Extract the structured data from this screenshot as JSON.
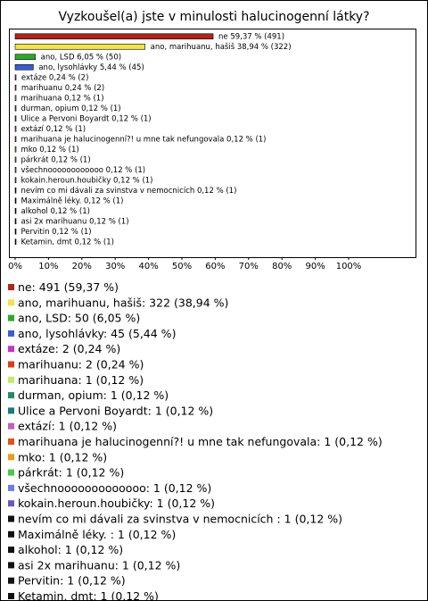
{
  "chart_data": {
    "type": "hbar",
    "title": "Vyzkoušel(a) jste v minulosti halucinogenní látky?",
    "categories": [
      "ne",
      "ano, marihuanu, hašiš",
      "ano, LSD",
      "ano, lysohlávky",
      "extáze",
      "marihuanu",
      "marihuana",
      "durman, opium",
      "Ulice a Pervoni Boyardt",
      "extází",
      "marihuana je halucinogenní?! u mne tak nefungovala",
      "mko",
      "párkrát",
      "všechnoooooooooooo",
      "kokain.heroun.houbičky",
      "nevím co mi dávali za svinstva v nemocnicích",
      "Maximálně léky.",
      "alkohol",
      "asi 2x marihuanu",
      "Pervitin",
      "Ketamin, dmt"
    ],
    "values": [
      59.37,
      38.94,
      6.05,
      5.44,
      0.24,
      0.24,
      0.12,
      0.12,
      0.12,
      0.12,
      0.12,
      0.12,
      0.12,
      0.12,
      0.12,
      0.12,
      0.12,
      0.12,
      0.12,
      0.12,
      0.12
    ],
    "value_labels": [
      "ne 59,37 % (491)",
      "ano, marihuanu, hašiš 38,94 % (322)",
      "ano, LSD 6,05 % (50)",
      "ano, lysohlávky 5,44 % (45)",
      "extáze 0,24 % (2)",
      "marihuanu 0,24 % (2)",
      "marihuana 0,12 % (1)",
      "durman, opium 0,12 % (1)",
      "Ulice a Pervoni Boyardt 0,12 % (1)",
      "extází 0,12 % (1)",
      "marihuana je halucinogenní?! u mne tak nefungovala 0,12 % (1)",
      "mko 0,12 % (1)",
      "párkrát 0,12 % (1)",
      "všechnoooooooooooo 0,12 % (1)",
      "kokain.heroun.houbičky 0,12 % (1)",
      "nevím co mi dávali za svinstva v nemocnicích  0,12 % (1)",
      "Maximálně léky.  0,12 % (1)",
      "alkohol 0,12 % (1)",
      "asi 2x marihuanu 0,12 % (1)",
      "Pervitin 0,12 % (1)",
      "Ketamin, dmt 0,12 % (1)"
    ],
    "legend_labels": [
      "ne: 491 (59,37 %)",
      "ano, marihuanu, hašiš: 322 (38,94 %)",
      "ano, LSD: 50 (6,05 %)",
      "ano, lysohlávky: 45 (5,44 %)",
      "extáze: 2 (0,24 %)",
      "marihuanu: 2 (0,24 %)",
      "marihuana: 1 (0,12 %)",
      "durman, opium: 1 (0,12 %)",
      "Ulice a Pervoni Boyardt: 1 (0,12 %)",
      "extází: 1 (0,12 %)",
      "marihuana je halucinogenní?! u mne tak nefungovala: 1 (0,12 %)",
      "mko: 1 (0,12 %)",
      "párkrát: 1 (0,12 %)",
      "všechnooooooooooooo: 1 (0,12 %)",
      "kokain.heroun.houbičky: 1 (0,12 %)",
      "nevím co mi dávali za svinstva v nemocnicích : 1 (0,12 %)",
      "Maximálně léky. : 1 (0,12 %)",
      "alkohol: 1 (0,12 %)",
      "asi 2x marihuanu: 1 (0,12 %)",
      "Pervitin: 1 (0,12 %)",
      "Ketamin, dmt: 1 (0,12 %)"
    ],
    "colors": [
      "#b0241c",
      "#f2e24a",
      "#2ea82e",
      "#3c5cd0",
      "#c832c8",
      "#d8401c",
      "#c8e868",
      "#248a6a",
      "#1c7a7a",
      "#c060c0",
      "#e0501c",
      "#f09a1c",
      "#48c848",
      "#6e7ee0",
      "#6a5ab8",
      "#111111",
      "#111111",
      "#111111",
      "#111111",
      "#111111",
      "#111111"
    ],
    "xlim": [
      0,
      100
    ],
    "xticks": [
      {
        "value": 0,
        "label": "0%"
      },
      {
        "value": 10,
        "label": "10%"
      },
      {
        "value": 20,
        "label": "20%"
      },
      {
        "value": 30,
        "label": "30%"
      },
      {
        "value": 40,
        "label": "40%"
      },
      {
        "value": 50,
        "label": "50%"
      },
      {
        "value": 60,
        "label": "60%"
      },
      {
        "value": 70,
        "label": "70%"
      },
      {
        "value": 80,
        "label": "80%"
      },
      {
        "value": 90,
        "label": "90%"
      },
      {
        "value": 100,
        "label": "100%"
      }
    ]
  }
}
